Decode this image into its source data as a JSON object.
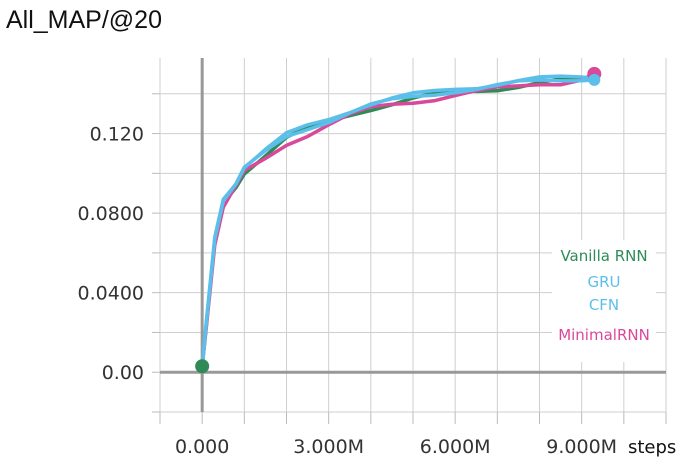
{
  "chart_data": {
    "type": "line",
    "title": "All_MAP/@20",
    "xlabel": "steps",
    "ylabel": "",
    "xlim": [
      -1000000,
      11000000
    ],
    "ylim": [
      -0.02,
      0.158
    ],
    "x_ticks": [
      0,
      3000000,
      6000000,
      9000000
    ],
    "x_tick_labels": [
      "0.000",
      "3.000M",
      "6.000M",
      "9.000M"
    ],
    "y_ticks": [
      0,
      0.04,
      0.08,
      0.12
    ],
    "y_tick_labels": [
      "0.00",
      "0.0400",
      "0.0800",
      "0.120"
    ],
    "grid": true,
    "legend_position": "right",
    "series": [
      {
        "name": "Vanilla RNN",
        "color": "#2e8b57",
        "x": [
          0,
          100000,
          300000,
          500000,
          800000,
          1000000,
          1500000,
          2000000,
          2500000,
          3000000,
          3500000,
          4000000,
          4500000,
          5000000,
          5500000,
          6000000,
          6500000,
          7000000,
          7500000,
          8000000,
          8500000,
          9000000,
          9300000
        ],
        "values": [
          0.003,
          0.024,
          0.066,
          0.085,
          0.094,
          0.101,
          0.109,
          0.117,
          0.122,
          0.126,
          0.13,
          0.133,
          0.135,
          0.137,
          0.139,
          0.141,
          0.142,
          0.143,
          0.144,
          0.145,
          0.146,
          0.147,
          0.148
        ]
      },
      {
        "name": "GRU",
        "color": "#5bbfea",
        "x": [
          0,
          100000,
          300000,
          500000,
          800000,
          1000000,
          1500000,
          2000000,
          2500000,
          3000000,
          3500000,
          4000000,
          4500000,
          5000000,
          5500000,
          6000000,
          6500000,
          7000000,
          7500000,
          8000000,
          8500000,
          9000000,
          9300000
        ],
        "values": [
          0.003,
          0.026,
          0.068,
          0.087,
          0.096,
          0.103,
          0.111,
          0.119,
          0.124,
          0.128,
          0.132,
          0.135,
          0.137,
          0.139,
          0.141,
          0.143,
          0.144,
          0.145,
          0.146,
          0.147,
          0.148,
          0.149,
          0.149
        ]
      },
      {
        "name": "CFN",
        "color": "#5bbfea",
        "x": [
          0,
          100000,
          300000,
          500000,
          800000,
          1000000,
          1500000,
          2000000,
          2500000,
          3000000,
          3500000,
          4000000,
          4500000,
          5000000,
          5500000,
          6000000,
          6500000,
          7000000,
          7500000,
          8000000,
          8500000,
          9000000,
          9300000
        ],
        "values": [
          0.003,
          0.025,
          0.067,
          0.086,
          0.095,
          0.102,
          0.11,
          0.118,
          0.123,
          0.127,
          0.131,
          0.134,
          0.136,
          0.138,
          0.14,
          0.142,
          0.143,
          0.144,
          0.145,
          0.146,
          0.147,
          0.148,
          0.148
        ]
      },
      {
        "name": "MinimalRNN",
        "color": "#d9499a",
        "x": [
          0,
          100000,
          300000,
          500000,
          800000,
          1000000,
          1500000,
          2000000,
          2500000,
          3000000,
          3500000,
          4000000,
          4500000,
          5000000,
          5500000,
          6000000,
          6500000,
          7000000,
          7500000,
          8000000,
          8500000,
          9000000,
          9300000
        ],
        "values": [
          0.003,
          0.023,
          0.064,
          0.083,
          0.093,
          0.1,
          0.107,
          0.115,
          0.12,
          0.125,
          0.129,
          0.132,
          0.134,
          0.136,
          0.138,
          0.14,
          0.141,
          0.142,
          0.143,
          0.145,
          0.146,
          0.148,
          0.15
        ]
      }
    ]
  }
}
